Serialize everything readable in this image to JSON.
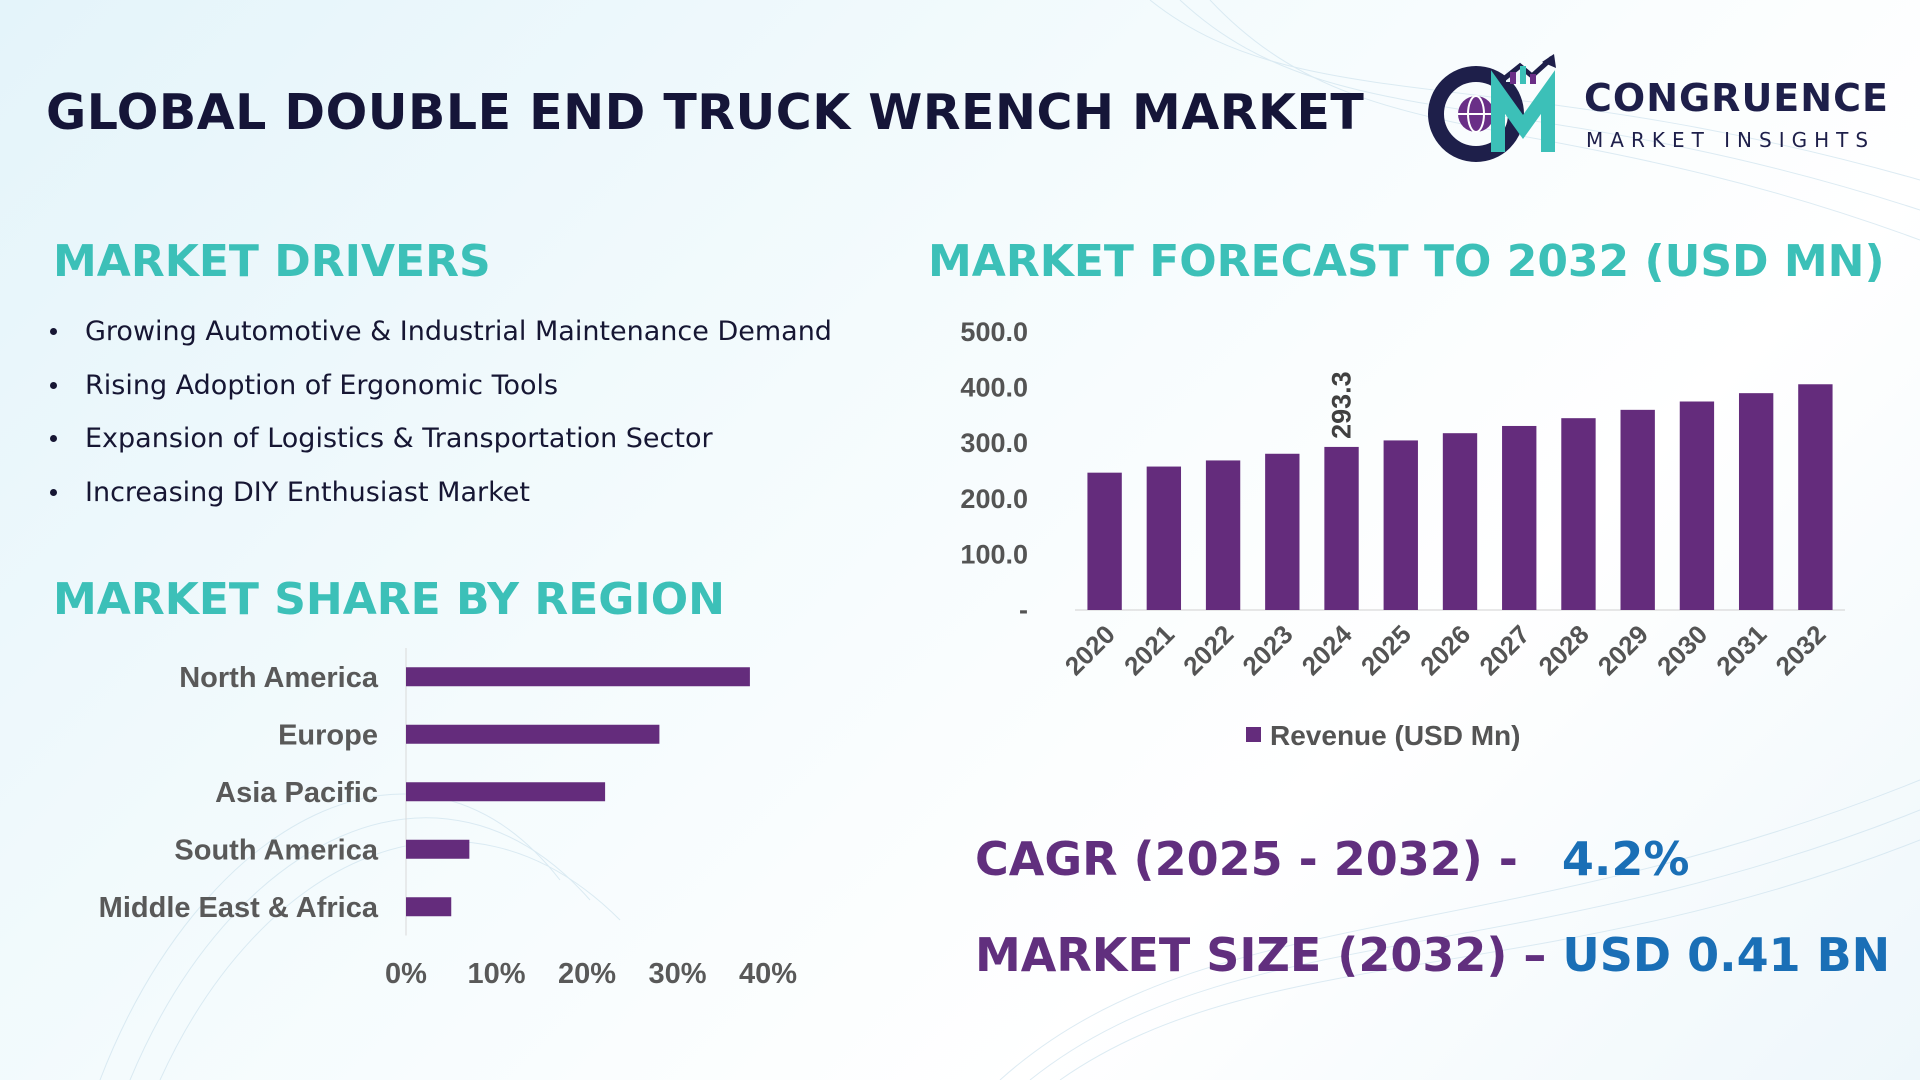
{
  "header": {
    "title": "GLOBAL DOUBLE END TRUCK WRENCH MARKET",
    "logo_name": "CONGRUENCE",
    "logo_sub": "MARKET INSIGHTS"
  },
  "drivers": {
    "title": "MARKET DRIVERS",
    "items": [
      "Growing Automotive & Industrial Maintenance Demand",
      "Rising Adoption of Ergonomic Tools",
      "Expansion of Logistics & Transportation Sector",
      "Increasing DIY Enthusiast Market"
    ]
  },
  "region": {
    "title": "MARKET SHARE BY REGION"
  },
  "forecast": {
    "title": "MARKET FORECAST TO 2032 (USD MN)"
  },
  "kpis": {
    "cagr_label": "CAGR (2025 - 2032) -",
    "cagr_value": "4.2%",
    "size_label": "MARKET SIZE (2032) –",
    "size_value": "USD 0.41 BN"
  },
  "colors": {
    "bar": "#642c7c",
    "accent": "#3cc0b8",
    "value_blue": "#1a6fb6"
  },
  "chart_data": [
    {
      "type": "bar",
      "orientation": "vertical",
      "categories": [
        "2020",
        "2021",
        "2022",
        "2023",
        "2024",
        "2025",
        "2026",
        "2027",
        "2028",
        "2029",
        "2030",
        "2031",
        "2032"
      ],
      "series": [
        {
          "name": "Revenue (USD Mn)",
          "values": [
            247,
            258,
            269,
            281,
            293.3,
            305,
            318,
            331,
            345,
            360,
            375,
            390,
            406
          ]
        }
      ],
      "data_labels": [
        {
          "category": "2024",
          "text": "293.3"
        }
      ],
      "ylim": [
        0,
        500
      ],
      "yticks": [
        0,
        100,
        200,
        300,
        400,
        500
      ],
      "ytick_labels": [
        "-",
        "100.0",
        "200.0",
        "300.0",
        "400.0",
        "500.0"
      ],
      "grid": false,
      "legend": "bottom"
    },
    {
      "type": "bar",
      "orientation": "horizontal",
      "categories": [
        "North America",
        "Europe",
        "Asia Pacific",
        "South America",
        "Middle East & Africa"
      ],
      "values": [
        38,
        28,
        22,
        7,
        5
      ],
      "xlim": [
        0,
        40
      ],
      "xticks": [
        0,
        10,
        20,
        30,
        40
      ],
      "xtick_labels": [
        "0%",
        "10%",
        "20%",
        "30%",
        "40%"
      ],
      "grid": false
    }
  ]
}
